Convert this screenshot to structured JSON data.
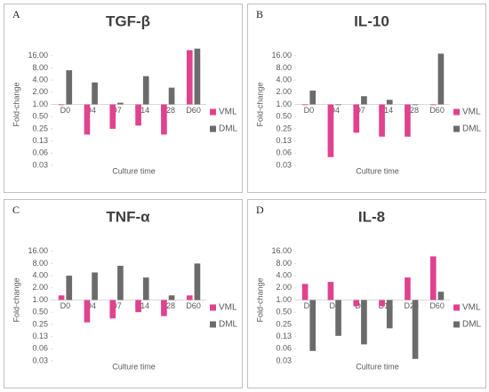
{
  "chart_data": [
    {
      "type": "bar",
      "panel": "A",
      "title": "TGF-β",
      "xlabel": "Culture time",
      "ylabel": "Fold-change",
      "categories": [
        "D0",
        "D4",
        "D7",
        "D14",
        "D28",
        "D60"
      ],
      "series": [
        {
          "name": "VML",
          "color": "#e0428e",
          "values": [
            1.0,
            0.18,
            0.25,
            0.3,
            0.18,
            22
          ]
        },
        {
          "name": "DML",
          "color": "#6b6b6b",
          "values": [
            7,
            3.5,
            1.1,
            5,
            2.6,
            24
          ]
        }
      ],
      "log_scale": true,
      "ylim": [
        0.03125,
        32
      ],
      "yticks": [
        {
          "value": 0.03125,
          "label": "0.03"
        },
        {
          "value": 0.0625,
          "label": "0.06"
        },
        {
          "value": 0.125,
          "label": "0.13"
        },
        {
          "value": 0.25,
          "label": "0.25"
        },
        {
          "value": 0.5,
          "label": "0.50"
        },
        {
          "value": 1,
          "label": "1.00"
        },
        {
          "value": 2,
          "label": "2.00"
        },
        {
          "value": 4,
          "label": "4.00"
        },
        {
          "value": 8,
          "label": "8.00"
        },
        {
          "value": 16,
          "label": "16.00"
        }
      ],
      "legend": "right"
    },
    {
      "type": "bar",
      "panel": "B",
      "title": "IL-10",
      "xlabel": "Culture time",
      "ylabel": "Fold-change",
      "categories": [
        "D0",
        "D4",
        "D7",
        "D14",
        "D28",
        "D60"
      ],
      "series": [
        {
          "name": "VML",
          "color": "#e0428e",
          "values": [
            1.0,
            0.05,
            0.2,
            0.16,
            0.16,
            1.0
          ]
        },
        {
          "name": "DML",
          "color": "#6b6b6b",
          "values": [
            2.2,
            1.0,
            1.6,
            1.3,
            1.0,
            18
          ]
        }
      ],
      "log_scale": true,
      "ylim": [
        0.03125,
        32
      ],
      "yticks": [
        {
          "value": 0.03125,
          "label": "0.03"
        },
        {
          "value": 0.0625,
          "label": "0.06"
        },
        {
          "value": 0.125,
          "label": "0.13"
        },
        {
          "value": 0.25,
          "label": "0.25"
        },
        {
          "value": 0.5,
          "label": "0.50"
        },
        {
          "value": 1,
          "label": "1.00"
        },
        {
          "value": 2,
          "label": "2.00"
        },
        {
          "value": 4,
          "label": "4.00"
        },
        {
          "value": 8,
          "label": "8.00"
        },
        {
          "value": 16,
          "label": "16.00"
        }
      ],
      "legend": "right"
    },
    {
      "type": "bar",
      "panel": "C",
      "title": "TNF-α",
      "xlabel": "Culture time",
      "ylabel": "Fold-change",
      "categories": [
        "D0",
        "D4",
        "D7",
        "D14",
        "D28",
        "D60"
      ],
      "series": [
        {
          "name": "VML",
          "color": "#e0428e",
          "values": [
            1.3,
            0.28,
            0.35,
            0.5,
            0.4,
            1.3
          ]
        },
        {
          "name": "DML",
          "color": "#6b6b6b",
          "values": [
            4,
            4.8,
            7,
            3.6,
            1.3,
            8
          ]
        }
      ],
      "log_scale": true,
      "ylim": [
        0.03125,
        32
      ],
      "yticks": [
        {
          "value": 0.03125,
          "label": "0.03"
        },
        {
          "value": 0.0625,
          "label": "0.06"
        },
        {
          "value": 0.125,
          "label": "0.13"
        },
        {
          "value": 0.25,
          "label": "0.25"
        },
        {
          "value": 0.5,
          "label": "0.50"
        },
        {
          "value": 1,
          "label": "1.00"
        },
        {
          "value": 2,
          "label": "2.00"
        },
        {
          "value": 4,
          "label": "4.00"
        },
        {
          "value": 8,
          "label": "8.00"
        },
        {
          "value": 16,
          "label": "16.00"
        }
      ],
      "legend": "right"
    },
    {
      "type": "bar",
      "panel": "D",
      "title": "IL-8",
      "xlabel": "Culture time",
      "ylabel": "Fold-change",
      "categories": [
        "D0",
        "D4",
        "D7",
        "D14",
        "D28",
        "D60"
      ],
      "series": [
        {
          "name": "VML",
          "color": "#e0428e",
          "values": [
            2.5,
            2.8,
            0.7,
            0.7,
            3.6,
            12
          ]
        },
        {
          "name": "DML",
          "color": "#6b6b6b",
          "values": [
            0.055,
            0.13,
            0.08,
            0.2,
            0.035,
            1.6
          ]
        }
      ],
      "log_scale": true,
      "ylim": [
        0.03125,
        32
      ],
      "yticks": [
        {
          "value": 0.03125,
          "label": "0.03"
        },
        {
          "value": 0.0625,
          "label": "0.06"
        },
        {
          "value": 0.125,
          "label": "0.13"
        },
        {
          "value": 0.25,
          "label": "0.25"
        },
        {
          "value": 0.5,
          "label": "0.50"
        },
        {
          "value": 1,
          "label": "1.00"
        },
        {
          "value": 2,
          "label": "2.00"
        },
        {
          "value": 4,
          "label": "4.00"
        },
        {
          "value": 8,
          "label": "8.00"
        },
        {
          "value": 16,
          "label": "16.00"
        }
      ],
      "legend": "right"
    }
  ]
}
